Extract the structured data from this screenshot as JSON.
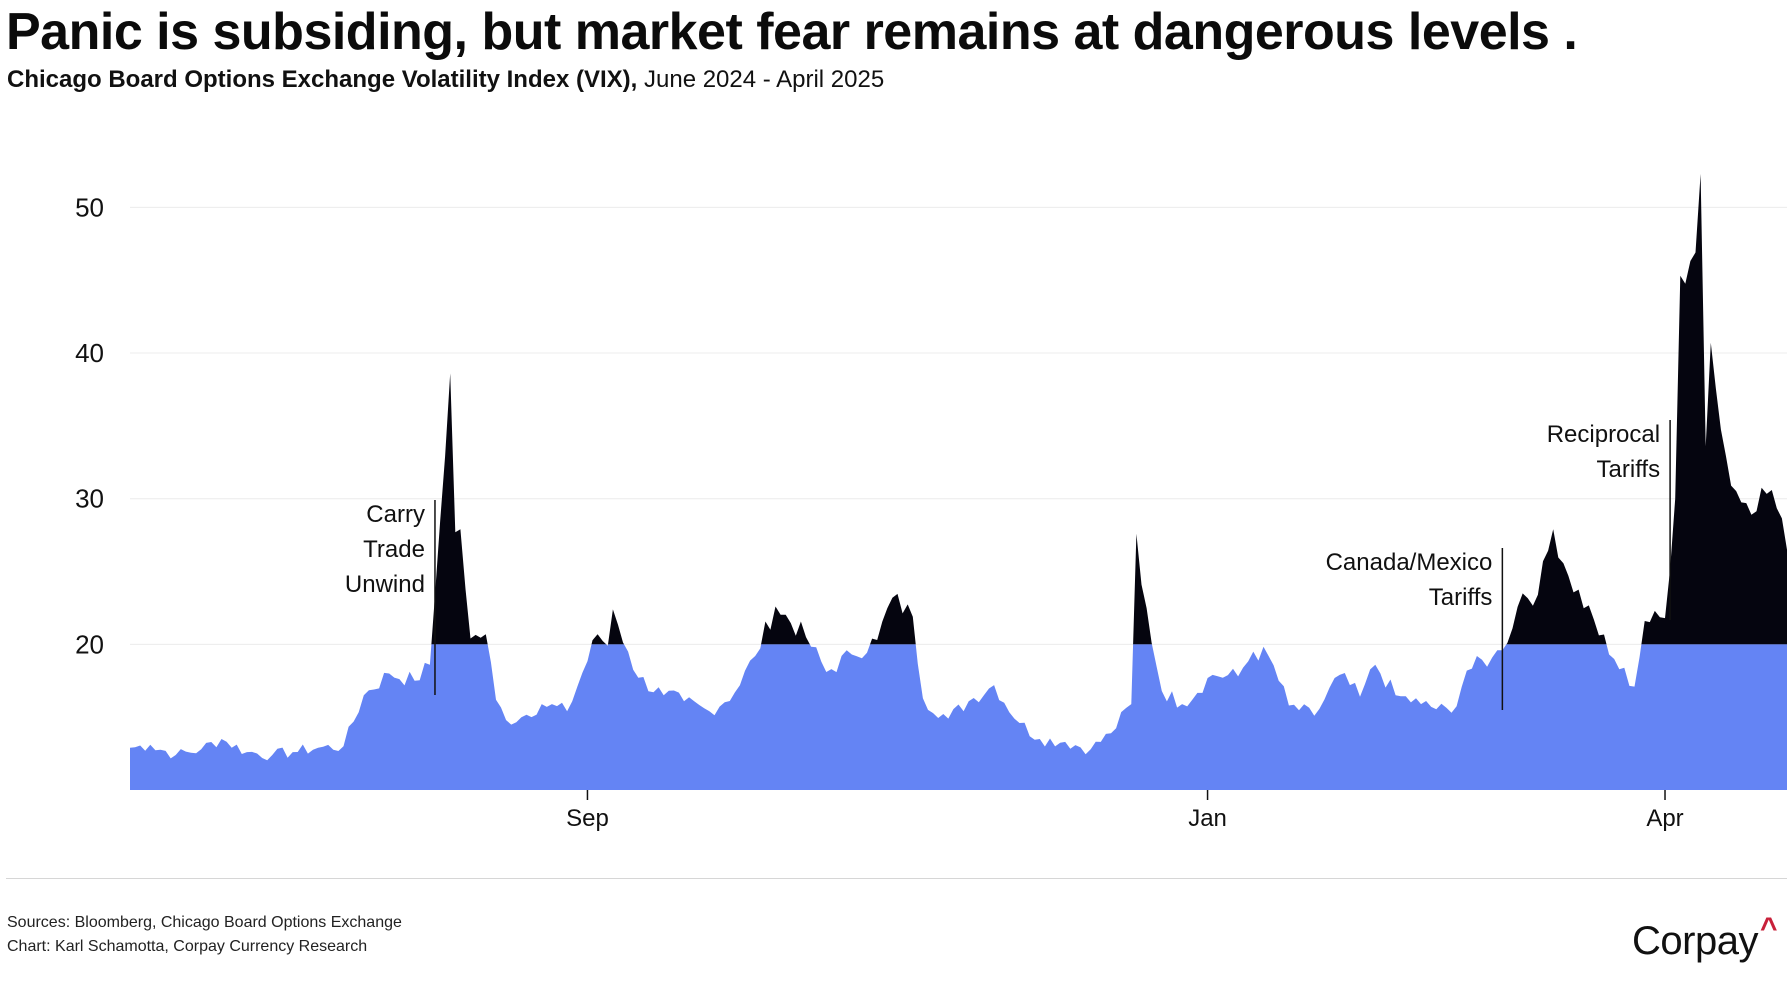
{
  "title": "Panic is subsiding, but market fear remains at dangerous levels .",
  "subtitle_strong": "Chicago Board Options Exchange Volatility Index (VIX),",
  "subtitle_rest": " June 2024 - April 2025",
  "footer": {
    "sources": "Sources: Bloomberg, Chicago Board Options Exchange",
    "credit": "Chart: Karl Schamotta, Corpay Currency Research"
  },
  "logo": {
    "text": "Corpay",
    "mark": "^"
  },
  "colors": {
    "below": "#6484f4",
    "above": "#05050f",
    "grid": "#ececec",
    "logo_accent": "#c8203a"
  },
  "chart_data": {
    "type": "area",
    "threshold": 20,
    "ylim": [
      10,
      56
    ],
    "grid": true,
    "y_ticks": [
      20,
      30,
      40,
      50
    ],
    "x_ticks": [
      {
        "label": "Sep",
        "date": "2024-09-01"
      },
      {
        "label": "Jan",
        "date": "2025-01-01"
      },
      {
        "label": "Apr",
        "date": "2025-04-01"
      }
    ],
    "x_range": [
      "2024-06-03",
      "2025-04-25"
    ],
    "annotations": [
      {
        "lines": [
          "Carry",
          "Trade",
          "Unwind"
        ],
        "date": "2024-08-02"
      },
      {
        "lines": [
          "Canada/Mexico",
          "Tariffs"
        ],
        "date": "2025-02-28"
      },
      {
        "lines": [
          "Reciprocal",
          "Tariffs"
        ],
        "date": "2025-04-02"
      }
    ],
    "series": {
      "x": [
        "2024-06-03",
        "2024-06-07",
        "2024-06-12",
        "2024-06-17",
        "2024-06-21",
        "2024-06-26",
        "2024-07-01",
        "2024-07-05",
        "2024-07-10",
        "2024-07-15",
        "2024-07-19",
        "2024-07-24",
        "2024-07-29",
        "2024-08-01",
        "2024-08-02",
        "2024-08-05",
        "2024-08-06",
        "2024-08-07",
        "2024-08-08",
        "2024-08-09",
        "2024-08-12",
        "2024-08-14",
        "2024-08-16",
        "2024-08-19",
        "2024-08-23",
        "2024-08-28",
        "2024-09-03",
        "2024-09-05",
        "2024-09-06",
        "2024-09-09",
        "2024-09-11",
        "2024-09-16",
        "2024-09-20",
        "2024-09-25",
        "2024-09-30",
        "2024-10-04",
        "2024-10-08",
        "2024-10-14",
        "2024-10-18",
        "2024-10-23",
        "2024-10-28",
        "2024-10-31",
        "2024-11-04",
        "2024-11-06",
        "2024-11-11",
        "2024-11-15",
        "2024-11-20",
        "2024-11-25",
        "2024-11-29",
        "2024-12-04",
        "2024-12-09",
        "2024-12-13",
        "2024-12-17",
        "2024-12-18",
        "2024-12-19",
        "2024-12-23",
        "2024-12-27",
        "2025-01-02",
        "2025-01-07",
        "2025-01-10",
        "2025-01-13",
        "2025-01-17",
        "2025-01-22",
        "2025-01-27",
        "2025-01-31",
        "2025-02-03",
        "2025-02-07",
        "2025-02-12",
        "2025-02-18",
        "2025-02-21",
        "2025-02-26",
        "2025-02-28",
        "2025-03-04",
        "2025-03-07",
        "2025-03-10",
        "2025-03-13",
        "2025-03-18",
        "2025-03-21",
        "2025-03-26",
        "2025-03-28",
        "2025-04-01",
        "2025-04-03",
        "2025-04-04",
        "2025-04-07",
        "2025-04-08",
        "2025-04-09",
        "2025-04-10",
        "2025-04-11",
        "2025-04-14",
        "2025-04-17",
        "2025-04-22",
        "2025-04-25"
      ],
      "y": [
        12.9,
        13.1,
        12.4,
        12.8,
        13.5,
        12.6,
        12.4,
        12.6,
        12.9,
        13.0,
        16.5,
        18.0,
        17.5,
        18.6,
        23.4,
        38.6,
        27.7,
        27.9,
        23.8,
        20.4,
        20.7,
        16.2,
        14.8,
        15.0,
        15.9,
        15.4,
        20.7,
        19.9,
        22.4,
        19.5,
        17.7,
        16.5,
        16.1,
        15.4,
        16.7,
        19.2,
        22.6,
        20.5,
        18.1,
        19.3,
        20.3,
        23.2,
        21.9,
        16.3,
        14.9,
        16.1,
        17.2,
        14.6,
        13.5,
        13.3,
        12.8,
        13.9,
        15.9,
        27.6,
        24.1,
        16.8,
        15.9,
        17.9,
        17.8,
        19.5,
        19.2,
        15.8,
        15.1,
        17.9,
        16.4,
        18.6,
        16.5,
        15.9,
        15.3,
        18.2,
        19.1,
        19.6,
        23.5,
        23.4,
        27.9,
        24.7,
        21.7,
        19.3,
        17.1,
        21.6,
        21.8,
        30.0,
        45.3,
        46.9,
        52.3,
        33.6,
        40.7,
        37.6,
        30.9,
        29.7,
        30.6,
        26.5
      ]
    }
  }
}
